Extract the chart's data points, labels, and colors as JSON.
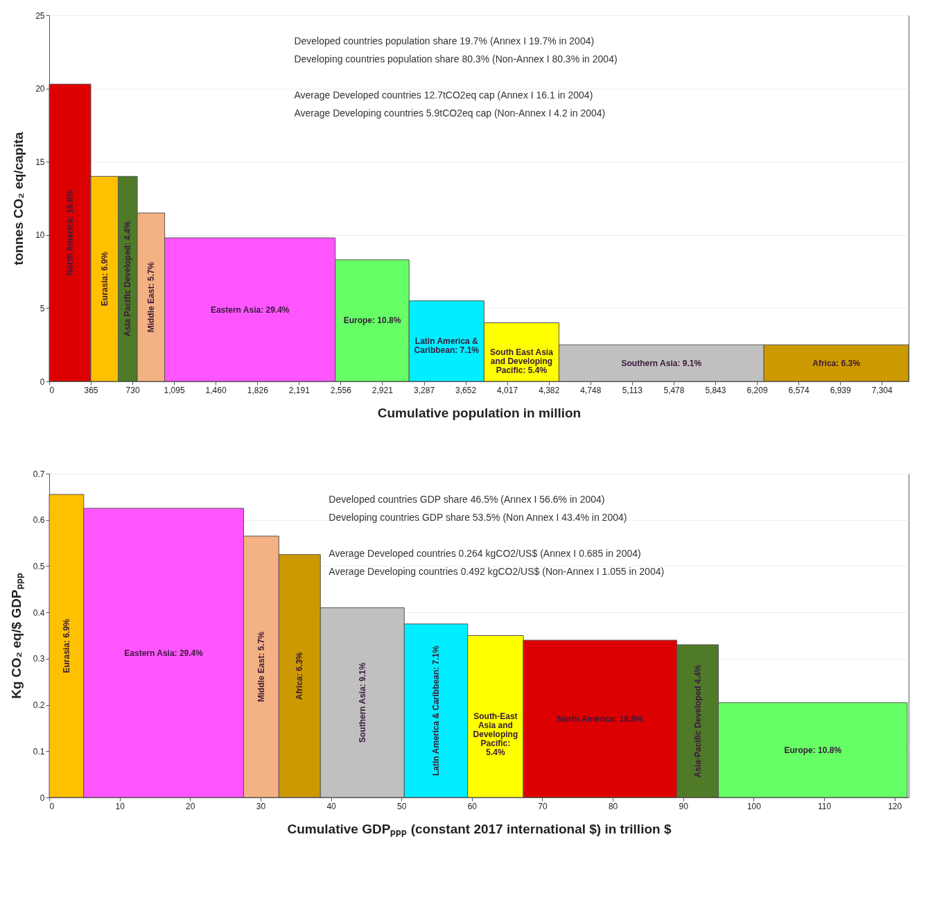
{
  "chart_data": [
    {
      "type": "histogram",
      "xlabel": "Cumulative population in million",
      "ylabel": "tonnes CO₂ eq/capita",
      "bins": [
        0,
        365,
        605,
        773,
        1013,
        2510,
        3157,
        3815,
        4472,
        6270,
        7540
      ],
      "values": [
        20.3,
        14.0,
        14.0,
        11.5,
        9.8,
        8.3,
        5.5,
        4.0,
        2.5,
        2.5
      ],
      "colors": [
        "#dd0000",
        "#ffc000",
        "#4f7a28",
        "#f4b183",
        "#ff55ff",
        "#66ff66",
        "#00eeff",
        "#ffff00",
        "#c0c0c0",
        "#cc9900"
      ],
      "xlim": [
        0,
        7540
      ],
      "xticks": [
        0,
        365,
        730,
        {
          "value": 1095,
          "label": "1,095"
        },
        {
          "value": 1460,
          "label": "1,460"
        },
        {
          "value": 1826,
          "label": "1,826"
        },
        {
          "value": 2191,
          "label": "2,191"
        },
        {
          "value": 2556,
          "label": "2,556"
        },
        {
          "value": 2921,
          "label": "2,921"
        },
        {
          "value": 3287,
          "label": "3,287"
        },
        {
          "value": 3652,
          "label": "3,652"
        },
        {
          "value": 4017,
          "label": "4,017"
        },
        {
          "value": 4382,
          "label": "4,382"
        },
        {
          "value": 4748,
          "label": "4,748"
        },
        {
          "value": 5113,
          "label": "5,113"
        },
        {
          "value": 5478,
          "label": "5,478"
        },
        {
          "value": 5843,
          "label": "5,843"
        },
        {
          "value": 6209,
          "label": "6,209"
        },
        {
          "value": 6574,
          "label": "6,574"
        },
        {
          "value": 6939,
          "label": "6,939"
        },
        {
          "value": 7304,
          "label": "7,304"
        }
      ],
      "ylim": [
        0,
        25
      ],
      "yticks": [
        0,
        5,
        10,
        15,
        20,
        25
      ],
      "grid": "y",
      "annotations": [
        "Developed countries population share 19.7% (Annex I 19.7% in 2004)",
        "Developing countries population share 80.3% (Non-Annex I 80.3% in 2004)",
        "Average Developed countries 12.7tCO2eq cap (Annex I 16.1 in 2004)",
        "Average Developing countries  5.9tCO2eq cap  (Non-Annex I 4.2 in 2004)",
        "North America: 18.8%",
        "Eurasia: 6.9%",
        "Asia Pacific Developed: 4.4%",
        "Middle East: 5.7%",
        "Eastern Asia: 29.4%",
        "Europe: 10.8%",
        "Latin America & Caribbean: 7.1%",
        "South East Asia and Developing Pacific: 5.4%",
        "Southern Asia: 9.1%",
        "Africa: 6.3%"
      ]
    },
    {
      "type": "histogram",
      "xlabel": "Cumulative GDPₚₚₚ (constant 2017 international $) in trillion $",
      "ylabel": "Kg CO₂ eq/$ GDPₚₚₚ",
      "bins": [
        0,
        4.9,
        27.6,
        32.6,
        38.5,
        50.4,
        59.4,
        67.3,
        89.1,
        95.0,
        121.8
      ],
      "values": [
        0.655,
        0.625,
        0.565,
        0.525,
        0.41,
        0.375,
        0.35,
        0.34,
        0.33,
        0.205
      ],
      "colors": [
        "#ffc000",
        "#ff55ff",
        "#f4b183",
        "#cc9900",
        "#c0c0c0",
        "#00eeff",
        "#ffff00",
        "#dd0000",
        "#4f7a28",
        "#66ff66"
      ],
      "xlim": [
        0,
        122
      ],
      "xticks": [
        0,
        10,
        20,
        30,
        40,
        50,
        60,
        70,
        80,
        90,
        100,
        110,
        120
      ],
      "ylim": [
        0,
        0.7
      ],
      "yticks": [
        0,
        0.1,
        0.2,
        0.3,
        0.4,
        0.5,
        0.6,
        0.7
      ],
      "grid": "y",
      "annotations": [
        "Developed countries GDP share 46.5%  (Annex I 56.6% in 2004)",
        "Developing countries GDP share 53.5% (Non Annex I 43.4% in 2004)",
        "Average Developed countries 0.264 kgCO2/US$ (Annex I 0.685 in 2004)",
        "Average Developing countries 0.492 kgCO2/US$ (Non-Annex I 1.055 in 2004)",
        "Eurasia: 6.9%",
        "Eastern Asia: 29.4%",
        "Middle East: 5.7%",
        "Africa: 6.3%",
        "Southern Asia: 9.1%",
        "Latin America & Caribbean: 7.1%",
        "South-East Asia and Developing Pacific: 5.4%",
        "North America: 18.8%",
        "Asia-Pacific Developed 4.4%",
        "Europe: 10.8%"
      ]
    }
  ]
}
